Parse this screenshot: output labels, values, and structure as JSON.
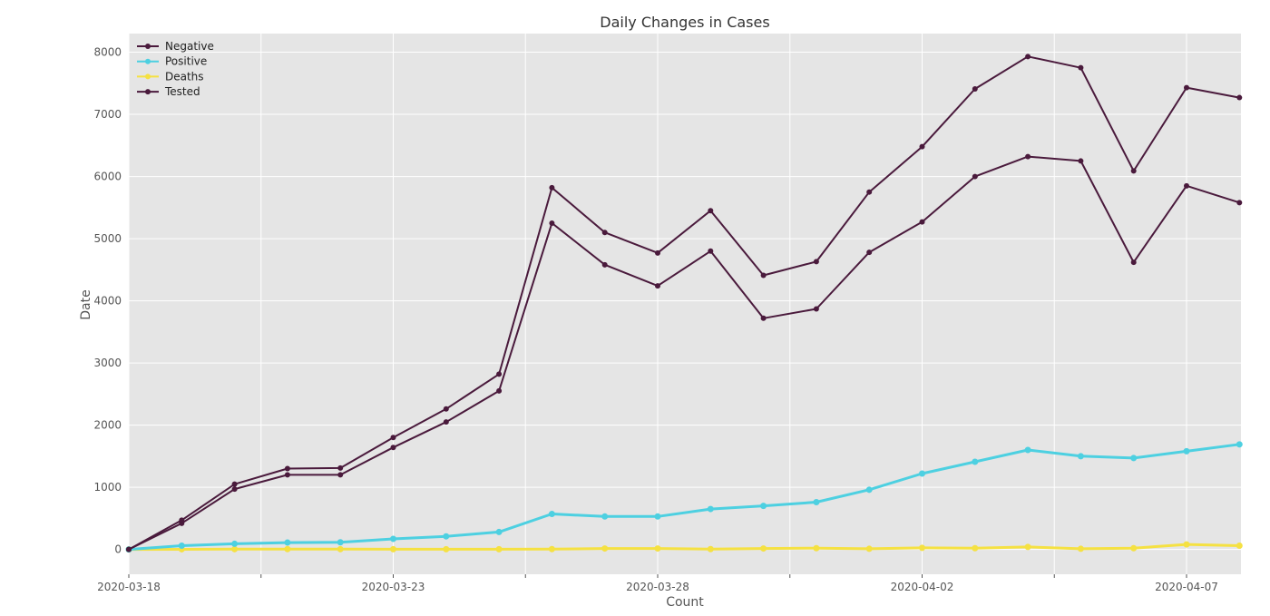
{
  "chart_data": {
    "type": "line",
    "title": "Daily Changes in Cases",
    "xlabel": "Count",
    "ylabel": "Date",
    "x": [
      "2020-03-18",
      "2020-03-19",
      "2020-03-20",
      "2020-03-21",
      "2020-03-22",
      "2020-03-23",
      "2020-03-24",
      "2020-03-25",
      "2020-03-26",
      "2020-03-27",
      "2020-03-28",
      "2020-03-29",
      "2020-03-30",
      "2020-03-31",
      "2020-04-01",
      "2020-04-02",
      "2020-04-03",
      "2020-04-04",
      "2020-04-05",
      "2020-04-06",
      "2020-04-07",
      "2020-04-08"
    ],
    "x_tick_labels": [
      "2020-03-18",
      "2020-03-23",
      "2020-03-28",
      "2020-04-02",
      "2020-04-07"
    ],
    "y_ticks": [
      0,
      1000,
      2000,
      3000,
      4000,
      5000,
      6000,
      7000,
      8000
    ],
    "ylim": [
      -400,
      8300
    ],
    "grid": true,
    "legend_position": "top-left",
    "series": [
      {
        "name": "Negative",
        "color": "#4a1a3c",
        "values": [
          0,
          420,
          970,
          1200,
          1200,
          1640,
          2050,
          2550,
          5250,
          4580,
          4240,
          4800,
          3720,
          3870,
          4780,
          5270,
          6000,
          6320,
          6250,
          4620,
          5850,
          5580
        ]
      },
      {
        "name": "Positive",
        "color": "#4dd0e1",
        "values": [
          0,
          60,
          90,
          110,
          115,
          170,
          210,
          280,
          570,
          530,
          530,
          650,
          700,
          760,
          960,
          1220,
          1410,
          1600,
          1500,
          1470,
          1580,
          1690
        ]
      },
      {
        "name": "Deaths",
        "color": "#f5e142",
        "values": [
          0,
          2,
          4,
          5,
          4,
          3,
          3,
          3,
          5,
          15,
          15,
          5,
          15,
          20,
          10,
          25,
          20,
          40,
          10,
          20,
          80,
          60
        ]
      },
      {
        "name": "Tested",
        "color": "#4a1a3c",
        "values": [
          0,
          470,
          1050,
          1300,
          1310,
          1800,
          2260,
          2820,
          5820,
          5100,
          4770,
          5450,
          4410,
          4630,
          5750,
          6480,
          7410,
          7930,
          7750,
          6090,
          7430,
          7270
        ]
      }
    ]
  }
}
